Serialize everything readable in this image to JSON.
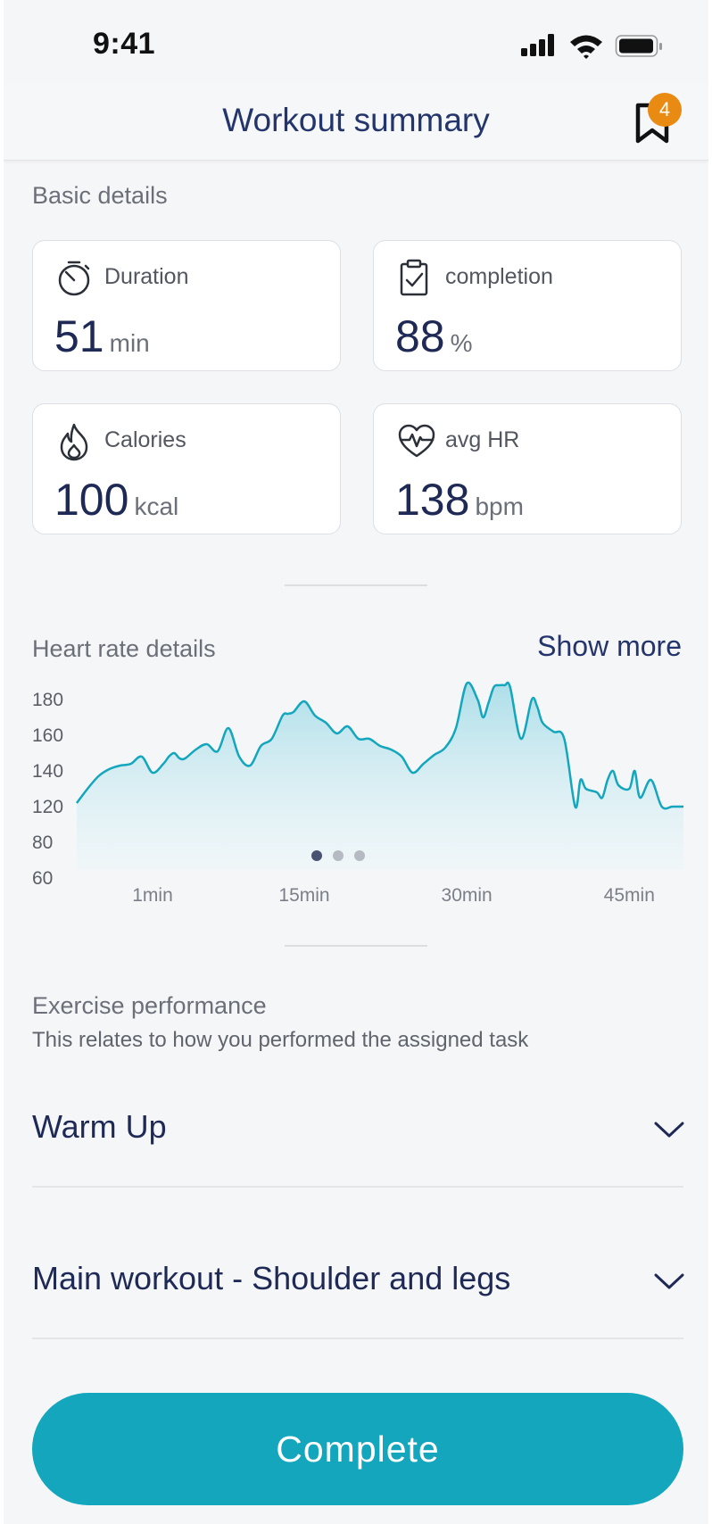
{
  "status_bar": {
    "time": "9:41"
  },
  "header": {
    "title": "Workout summary",
    "badge_count": "4"
  },
  "basic_details": {
    "title": "Basic details",
    "cards": [
      {
        "label": "Duration",
        "value": "51",
        "unit": "min",
        "icon": "stopwatch-icon"
      },
      {
        "label": "completion",
        "value": "88",
        "unit": "%",
        "icon": "clipboard-check-icon"
      },
      {
        "label": "Calories",
        "value": "100",
        "unit": "kcal",
        "icon": "flame-icon"
      },
      {
        "label": "avg HR",
        "value": "138",
        "unit": "bpm",
        "icon": "heart-pulse-icon"
      }
    ]
  },
  "heart_rate": {
    "title": "Heart rate details",
    "show_more": "Show more"
  },
  "chart_data": {
    "type": "area",
    "title": "Heart rate details",
    "xlabel": "",
    "ylabel": "",
    "y_ticks": [
      "180",
      "160",
      "140",
      "120",
      "80",
      "60"
    ],
    "x_ticks": [
      "1min",
      "15min",
      "30min",
      "45min"
    ],
    "x_tick_positions": [
      1,
      15,
      30,
      45
    ],
    "xlim": [
      -6,
      50
    ],
    "x": [
      -6,
      -5,
      -4,
      -3,
      -2,
      -1,
      0,
      1,
      2,
      2.5,
      3,
      3.5,
      4,
      5,
      6,
      7,
      8,
      9,
      10,
      11,
      12,
      13,
      13.5,
      14,
      15,
      16,
      17,
      18,
      19,
      20,
      21,
      22,
      23,
      24,
      25,
      26,
      27,
      28,
      29,
      30,
      31,
      31.5,
      32,
      32.5,
      33,
      33.5,
      34,
      35,
      36,
      36.5,
      37,
      38,
      39,
      40,
      40.5,
      41,
      42,
      42.5,
      43,
      43.5,
      44,
      45,
      45.5,
      46,
      47,
      48,
      49,
      50
    ],
    "y": [
      122,
      130,
      137,
      141,
      143,
      144,
      148,
      139,
      144,
      148,
      150,
      147,
      147,
      152,
      155,
      151,
      164,
      148,
      143,
      154,
      158,
      171,
      172,
      173,
      179,
      171,
      167,
      161,
      165,
      158,
      158,
      154,
      152,
      148,
      139,
      144,
      149,
      153,
      164,
      189,
      180,
      170,
      178,
      187,
      188,
      188,
      187,
      158,
      180,
      176,
      167,
      162,
      158,
      120,
      135,
      130,
      128,
      125,
      135,
      140,
      132,
      130,
      140,
      125,
      135,
      120,
      120,
      120
    ],
    "ylim": [
      60,
      190
    ],
    "series_name": "Heart rate",
    "pager": {
      "pages": 3,
      "active": 1
    }
  },
  "performance": {
    "title": "Exercise performance",
    "subtitle": "This relates to how you performed the assigned task",
    "sections": [
      {
        "label": "Warm Up"
      },
      {
        "label": "Main workout - Shoulder and legs"
      }
    ]
  },
  "footer": {
    "complete_label": "Complete"
  },
  "colors": {
    "accent": "#13a6bd",
    "navy": "#24356b",
    "badge": "#e98a12"
  }
}
